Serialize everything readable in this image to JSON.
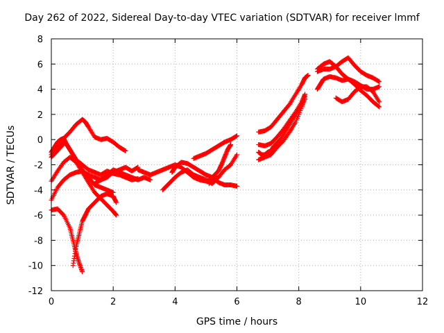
{
  "chart_data": {
    "type": "scatter",
    "title": "Day 262 of 2022, Sidereal Day-to-day VTEC variation (SDTVAR) for receiver lmmf",
    "xlabel": "GPS time / hours",
    "ylabel": "SDTVAR / TECUs",
    "xlim": [
      0,
      12
    ],
    "ylim": [
      -12,
      8
    ],
    "xticks": [
      0,
      2,
      4,
      6,
      8,
      10,
      12
    ],
    "yticks": [
      -12,
      -10,
      -8,
      -6,
      -4,
      -2,
      0,
      2,
      4,
      6,
      8
    ],
    "grid": true,
    "marker": "+",
    "color": "#ff0000",
    "series": [
      {
        "points": [
          [
            0.0,
            -1.4
          ],
          [
            0.15,
            -1.0
          ],
          [
            0.3,
            -0.6
          ],
          [
            0.45,
            -0.2
          ],
          [
            0.6,
            -0.8
          ],
          [
            0.8,
            -1.6
          ],
          [
            1.0,
            -2.0
          ],
          [
            1.2,
            -2.4
          ],
          [
            1.4,
            -2.6
          ],
          [
            1.6,
            -2.8
          ],
          [
            1.8,
            -2.5
          ],
          [
            2.0,
            -2.7
          ],
          [
            2.2,
            -2.8
          ],
          [
            2.4,
            -3.0
          ],
          [
            2.6,
            -3.2
          ],
          [
            2.8,
            -3.1
          ]
        ]
      },
      {
        "points": [
          [
            0.0,
            -4.8
          ],
          [
            0.2,
            -3.8
          ],
          [
            0.4,
            -3.2
          ],
          [
            0.6,
            -2.8
          ],
          [
            0.8,
            -2.6
          ],
          [
            1.0,
            -2.5
          ],
          [
            1.2,
            -2.8
          ],
          [
            1.4,
            -3.0
          ],
          [
            1.6,
            -3.2
          ],
          [
            1.8,
            -3.0
          ],
          [
            2.0,
            -2.6
          ],
          [
            2.2,
            -2.4
          ],
          [
            2.4,
            -2.2
          ],
          [
            2.6,
            -2.5
          ],
          [
            2.8,
            -2.2
          ]
        ]
      },
      {
        "points": [
          [
            0.0,
            -3.3
          ],
          [
            0.2,
            -2.5
          ],
          [
            0.4,
            -1.8
          ],
          [
            0.6,
            -1.4
          ],
          [
            0.8,
            -1.8
          ],
          [
            1.0,
            -2.6
          ],
          [
            1.2,
            -3.4
          ],
          [
            1.4,
            -4.2
          ],
          [
            1.6,
            -4.7
          ],
          [
            1.8,
            -5.2
          ],
          [
            2.0,
            -5.7
          ],
          [
            2.1,
            -6.0
          ]
        ]
      },
      {
        "points": [
          [
            0.0,
            -1.0
          ],
          [
            0.1,
            -0.6
          ],
          [
            0.2,
            -0.2
          ],
          [
            0.3,
            0.0
          ],
          [
            0.4,
            0.1
          ],
          [
            0.5,
            -0.4
          ],
          [
            0.6,
            -0.8
          ],
          [
            0.7,
            -1.2
          ],
          [
            0.8,
            -1.6
          ],
          [
            1.0,
            -2.4
          ],
          [
            1.2,
            -3.0
          ],
          [
            1.4,
            -3.6
          ],
          [
            1.6,
            -3.8
          ],
          [
            1.8,
            -4.0
          ],
          [
            2.0,
            -4.2
          ]
        ]
      },
      {
        "points": [
          [
            0.0,
            -1.2
          ],
          [
            0.2,
            -0.6
          ],
          [
            0.4,
            0.1
          ],
          [
            0.6,
            0.6
          ],
          [
            0.8,
            1.2
          ],
          [
            1.0,
            1.6
          ],
          [
            1.1,
            1.4
          ],
          [
            1.2,
            1.0
          ],
          [
            1.4,
            0.2
          ],
          [
            1.6,
            0.0
          ],
          [
            1.8,
            0.1
          ],
          [
            2.0,
            -0.2
          ],
          [
            2.2,
            -0.6
          ],
          [
            2.4,
            -0.9
          ]
        ]
      },
      {
        "points": [
          [
            0.0,
            -5.6
          ],
          [
            0.2,
            -5.5
          ],
          [
            0.4,
            -6.0
          ],
          [
            0.6,
            -7.0
          ],
          [
            0.7,
            -8.0
          ],
          [
            0.8,
            -9.0
          ],
          [
            0.9,
            -9.8
          ],
          [
            1.0,
            -10.5
          ]
        ]
      },
      {
        "points": [
          [
            0.7,
            -10.0
          ],
          [
            0.8,
            -8.5
          ],
          [
            0.9,
            -7.5
          ],
          [
            1.0,
            -6.5
          ],
          [
            1.1,
            -6.0
          ],
          [
            1.2,
            -5.5
          ],
          [
            1.4,
            -5.0
          ],
          [
            1.6,
            -4.5
          ],
          [
            1.8,
            -4.3
          ],
          [
            2.0,
            -4.5
          ],
          [
            2.1,
            -5.0
          ]
        ]
      },
      {
        "points": [
          [
            1.4,
            -3.5
          ],
          [
            1.6,
            -3.2
          ],
          [
            1.8,
            -2.8
          ],
          [
            2.0,
            -2.4
          ],
          [
            2.2,
            -2.6
          ],
          [
            2.4,
            -2.8
          ],
          [
            2.6,
            -3.0
          ],
          [
            2.8,
            -3.2
          ],
          [
            3.0,
            -3.0
          ],
          [
            3.2,
            -3.2
          ]
        ]
      },
      {
        "points": [
          [
            2.8,
            -2.4
          ],
          [
            3.0,
            -2.6
          ],
          [
            3.2,
            -2.8
          ],
          [
            3.4,
            -2.6
          ],
          [
            3.6,
            -2.4
          ],
          [
            3.8,
            -2.2
          ],
          [
            4.0,
            -2.0
          ],
          [
            4.2,
            -2.2
          ],
          [
            4.4,
            -2.6
          ],
          [
            4.6,
            -3.0
          ],
          [
            4.8,
            -3.2
          ],
          [
            5.0,
            -3.3
          ],
          [
            5.2,
            -3.2
          ],
          [
            5.4,
            -3.0
          ]
        ]
      },
      {
        "points": [
          [
            3.6,
            -4.0
          ],
          [
            3.8,
            -3.5
          ],
          [
            4.0,
            -3.0
          ],
          [
            4.2,
            -2.6
          ],
          [
            4.4,
            -2.4
          ],
          [
            4.6,
            -2.8
          ],
          [
            4.8,
            -3.0
          ],
          [
            5.0,
            -3.2
          ],
          [
            5.2,
            -3.5
          ],
          [
            5.4,
            -3.0
          ],
          [
            5.6,
            -2.4
          ],
          [
            5.8,
            -2.0
          ],
          [
            6.0,
            -1.2
          ]
        ]
      },
      {
        "points": [
          [
            4.6,
            -1.5
          ],
          [
            4.8,
            -1.3
          ],
          [
            5.0,
            -1.1
          ],
          [
            5.2,
            -0.8
          ],
          [
            5.4,
            -0.5
          ],
          [
            5.6,
            -0.2
          ],
          [
            5.8,
            0.0
          ],
          [
            6.0,
            0.3
          ]
        ]
      },
      {
        "points": [
          [
            3.9,
            -2.6
          ],
          [
            4.0,
            -2.2
          ],
          [
            4.2,
            -1.8
          ],
          [
            4.4,
            -1.9
          ],
          [
            4.6,
            -2.2
          ],
          [
            4.8,
            -2.5
          ],
          [
            5.0,
            -2.8
          ],
          [
            5.2,
            -3.0
          ],
          [
            5.4,
            -3.4
          ],
          [
            5.6,
            -3.6
          ],
          [
            5.8,
            -3.6
          ],
          [
            6.0,
            -3.7
          ]
        ]
      },
      {
        "points": [
          [
            5.1,
            -3.5
          ],
          [
            5.2,
            -3.0
          ],
          [
            5.4,
            -2.5
          ],
          [
            5.5,
            -2.0
          ],
          [
            5.6,
            -1.4
          ],
          [
            5.7,
            -0.8
          ],
          [
            5.8,
            -0.4
          ]
        ]
      },
      {
        "points": [
          [
            6.7,
            -1.0
          ],
          [
            6.8,
            -1.2
          ],
          [
            6.9,
            -1.2
          ],
          [
            7.0,
            -1.0
          ],
          [
            7.1,
            -0.9
          ],
          [
            7.2,
            -0.5
          ],
          [
            7.4,
            0.0
          ],
          [
            7.6,
            0.8
          ],
          [
            7.8,
            1.6
          ],
          [
            8.0,
            2.4
          ],
          [
            8.2,
            3.2
          ]
        ]
      },
      {
        "points": [
          [
            6.7,
            0.6
          ],
          [
            6.9,
            0.7
          ],
          [
            7.1,
            1.0
          ],
          [
            7.3,
            1.6
          ],
          [
            7.5,
            2.2
          ],
          [
            7.7,
            2.8
          ],
          [
            7.9,
            3.6
          ],
          [
            8.1,
            4.4
          ],
          [
            8.2,
            4.9
          ],
          [
            8.3,
            5.1
          ]
        ]
      },
      {
        "points": [
          [
            6.7,
            -1.6
          ],
          [
            6.9,
            -1.4
          ],
          [
            7.1,
            -1.2
          ],
          [
            7.3,
            -0.6
          ],
          [
            7.5,
            -0.1
          ],
          [
            7.7,
            0.6
          ],
          [
            7.9,
            1.4
          ],
          [
            8.1,
            2.6
          ],
          [
            8.2,
            3.4
          ]
        ]
      },
      {
        "points": [
          [
            6.7,
            -0.4
          ],
          [
            6.9,
            -0.5
          ],
          [
            7.1,
            -0.3
          ],
          [
            7.3,
            0.2
          ],
          [
            7.5,
            0.8
          ],
          [
            7.7,
            1.5
          ],
          [
            7.9,
            2.2
          ],
          [
            8.1,
            3.0
          ],
          [
            8.2,
            3.6
          ]
        ]
      },
      {
        "points": [
          [
            8.6,
            4.0
          ],
          [
            8.7,
            4.4
          ],
          [
            8.8,
            4.8
          ],
          [
            9.0,
            5.0
          ],
          [
            9.2,
            4.9
          ],
          [
            9.4,
            4.7
          ],
          [
            9.6,
            4.8
          ],
          [
            9.8,
            4.6
          ],
          [
            10.0,
            4.3
          ],
          [
            10.2,
            4.0
          ],
          [
            10.4,
            4.0
          ],
          [
            10.6,
            4.2
          ]
        ]
      },
      {
        "points": [
          [
            8.6,
            5.4
          ],
          [
            8.8,
            5.6
          ],
          [
            9.0,
            5.6
          ],
          [
            9.2,
            5.8
          ],
          [
            9.4,
            6.2
          ],
          [
            9.6,
            6.5
          ],
          [
            9.8,
            5.9
          ],
          [
            10.0,
            5.4
          ],
          [
            10.2,
            5.1
          ],
          [
            10.4,
            4.9
          ],
          [
            10.6,
            4.6
          ]
        ]
      },
      {
        "points": [
          [
            8.6,
            5.6
          ],
          [
            8.8,
            6.0
          ],
          [
            9.0,
            6.2
          ],
          [
            9.2,
            5.8
          ],
          [
            9.4,
            5.2
          ],
          [
            9.6,
            4.8
          ],
          [
            9.8,
            4.4
          ],
          [
            10.0,
            3.9
          ],
          [
            10.2,
            3.5
          ],
          [
            10.4,
            3.0
          ],
          [
            10.6,
            2.6
          ]
        ]
      },
      {
        "points": [
          [
            9.2,
            3.3
          ],
          [
            9.4,
            3.0
          ],
          [
            9.6,
            3.2
          ],
          [
            9.8,
            3.8
          ],
          [
            10.0,
            4.2
          ],
          [
            10.2,
            4.2
          ],
          [
            10.4,
            3.8
          ],
          [
            10.6,
            3.0
          ]
        ]
      }
    ]
  }
}
